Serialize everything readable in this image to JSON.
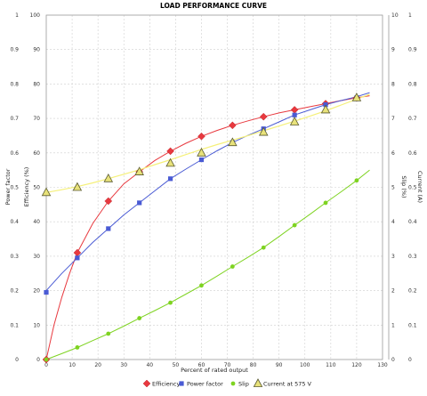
{
  "chart_data": {
    "type": "line",
    "title": "LOAD PERFORMANCE CURVE",
    "xlabel": "Percent of rated output",
    "y_left_outer_label": "Power factor",
    "y_left_inner_label": "Efficiency (%)",
    "y_right_inner_label": "Slip (%)",
    "y_right_outer_label": "Current (A)",
    "xlim": [
      0,
      130
    ],
    "x_ticks": [
      "0",
      "10",
      "20",
      "30",
      "40",
      "50",
      "60",
      "70",
      "80",
      "90",
      "100",
      "110",
      "120",
      "130"
    ],
    "y_pf_ticks": [
      "0",
      "0.1",
      "0.2",
      "0.3",
      "0.4",
      "0.5",
      "0.6",
      "0.7",
      "0.8",
      "0.9",
      "1"
    ],
    "y_eff_ticks": [
      "0",
      "10",
      "20",
      "30",
      "40",
      "50",
      "60",
      "70",
      "80",
      "90",
      "100"
    ],
    "y_slip_ticks": [
      "0",
      "1",
      "2",
      "3",
      "4",
      "5",
      "6",
      "7",
      "8",
      "9",
      "10"
    ],
    "y_current_ticks": [
      "0",
      "0.1",
      "0.2",
      "0.3",
      "0.4",
      "0.5",
      "0.6",
      "0.7",
      "0.8",
      "0.9",
      "1"
    ],
    "grid": true,
    "legend_position": "bottom",
    "series": [
      {
        "name": "Efficiency",
        "axis": "efficiency",
        "color": "#e8393f",
        "marker": "diamond",
        "points": [
          [
            0,
            0
          ],
          [
            12,
            31
          ],
          [
            24,
            46
          ],
          [
            36,
            54.5
          ],
          [
            48,
            60.5
          ],
          [
            60,
            64.8
          ],
          [
            72,
            68
          ],
          [
            84,
            70.5
          ],
          [
            96,
            72.5
          ],
          [
            108,
            74.3
          ],
          [
            120,
            76
          ]
        ],
        "curve": [
          [
            0,
            0
          ],
          [
            3,
            10
          ],
          [
            6,
            18
          ],
          [
            9,
            25
          ],
          [
            12,
            31
          ],
          [
            18,
            39.5
          ],
          [
            24,
            46
          ],
          [
            30,
            51
          ],
          [
            36,
            54.5
          ],
          [
            42,
            57.8
          ],
          [
            48,
            60.5
          ],
          [
            54,
            62.8
          ],
          [
            60,
            64.8
          ],
          [
            66,
            66.5
          ],
          [
            72,
            68
          ],
          [
            78,
            69.3
          ],
          [
            84,
            70.5
          ],
          [
            90,
            71.6
          ],
          [
            96,
            72.5
          ],
          [
            102,
            73.4
          ],
          [
            108,
            74.3
          ],
          [
            114,
            75.2
          ],
          [
            120,
            76
          ],
          [
            125,
            76.6
          ]
        ]
      },
      {
        "name": "Power factor",
        "axis": "efficiency",
        "color": "#4a5bd4",
        "marker": "square",
        "points": [
          [
            0,
            19.5
          ],
          [
            12,
            29.5
          ],
          [
            24,
            38
          ],
          [
            36,
            45.5
          ],
          [
            48,
            52.5
          ],
          [
            60,
            58
          ],
          [
            72,
            63
          ],
          [
            84,
            67
          ],
          [
            96,
            71
          ],
          [
            108,
            74
          ],
          [
            120,
            76
          ]
        ],
        "curve": [
          [
            0,
            20
          ],
          [
            6,
            25
          ],
          [
            12,
            29.5
          ],
          [
            18,
            34
          ],
          [
            24,
            38
          ],
          [
            30,
            42
          ],
          [
            36,
            45.5
          ],
          [
            42,
            49
          ],
          [
            48,
            52.5
          ],
          [
            54,
            55.3
          ],
          [
            60,
            58
          ],
          [
            66,
            60.6
          ],
          [
            72,
            63
          ],
          [
            78,
            65.1
          ],
          [
            84,
            67
          ],
          [
            90,
            69
          ],
          [
            96,
            71
          ],
          [
            102,
            72.5
          ],
          [
            108,
            74
          ],
          [
            114,
            75.2
          ],
          [
            120,
            76.3
          ],
          [
            125,
            77.5
          ]
        ]
      },
      {
        "name": "Slip",
        "axis": "efficiency",
        "color": "#7ed321",
        "marker": "dot",
        "points": [
          [
            0,
            0
          ],
          [
            12,
            3.5
          ],
          [
            24,
            7.5
          ],
          [
            36,
            12
          ],
          [
            48,
            16.5
          ],
          [
            60,
            21.5
          ],
          [
            72,
            27
          ],
          [
            84,
            32.5
          ],
          [
            96,
            39
          ],
          [
            108,
            45.5
          ],
          [
            120,
            52
          ]
        ],
        "curve": [
          [
            0,
            0
          ],
          [
            6,
            1.7
          ],
          [
            12,
            3.5
          ],
          [
            18,
            5.5
          ],
          [
            24,
            7.5
          ],
          [
            30,
            9.7
          ],
          [
            36,
            12
          ],
          [
            42,
            14.2
          ],
          [
            48,
            16.5
          ],
          [
            54,
            19
          ],
          [
            60,
            21.5
          ],
          [
            66,
            24.2
          ],
          [
            72,
            27
          ],
          [
            78,
            29.7
          ],
          [
            84,
            32.5
          ],
          [
            90,
            35.7
          ],
          [
            96,
            39
          ],
          [
            102,
            42.2
          ],
          [
            108,
            45.5
          ],
          [
            114,
            48.7
          ],
          [
            120,
            52
          ],
          [
            125,
            55
          ]
        ]
      },
      {
        "name": "Current at 575 V",
        "axis": "efficiency",
        "color": "#f5f07a",
        "marker": "triangle",
        "marker_fill": "#e8e27a",
        "marker_stroke": "#5a5a30",
        "points": [
          [
            0,
            48.5
          ],
          [
            12,
            50
          ],
          [
            24,
            52.5
          ],
          [
            36,
            54.5
          ],
          [
            48,
            57
          ],
          [
            60,
            60
          ],
          [
            72,
            63
          ],
          [
            84,
            66
          ],
          [
            96,
            69
          ],
          [
            108,
            72.5
          ],
          [
            120,
            76
          ]
        ],
        "curve": [
          [
            0,
            48.5
          ],
          [
            6,
            49.3
          ],
          [
            12,
            50.2
          ],
          [
            18,
            51.3
          ],
          [
            24,
            52.5
          ],
          [
            30,
            53.8
          ],
          [
            36,
            55.1
          ],
          [
            42,
            56.6
          ],
          [
            48,
            58
          ],
          [
            54,
            59.5
          ],
          [
            60,
            61
          ],
          [
            66,
            62.4
          ],
          [
            72,
            63.7
          ],
          [
            78,
            65
          ],
          [
            84,
            66.4
          ],
          [
            90,
            67.8
          ],
          [
            96,
            69.2
          ],
          [
            102,
            70.7
          ],
          [
            108,
            72.2
          ],
          [
            114,
            73.9
          ],
          [
            120,
            75.6
          ],
          [
            125,
            77
          ]
        ]
      }
    ]
  }
}
